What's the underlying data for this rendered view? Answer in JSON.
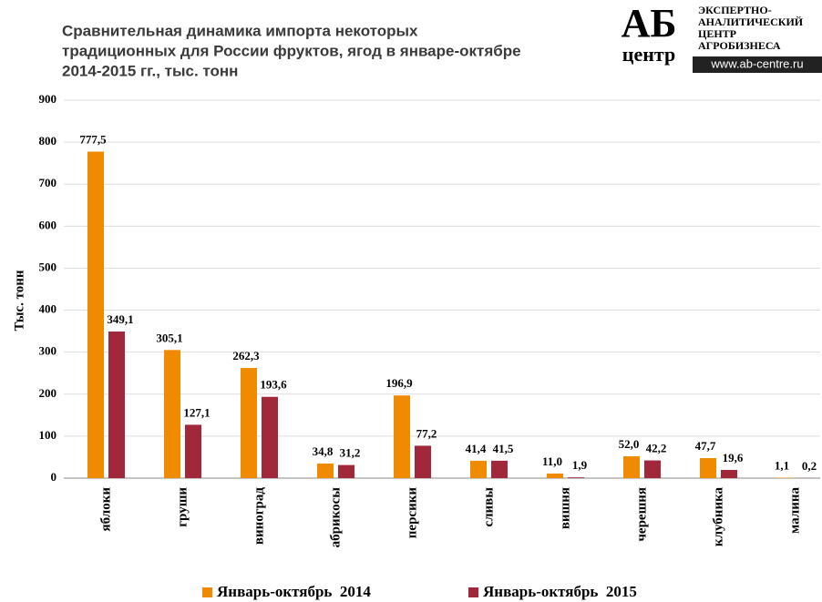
{
  "chart_data": {
    "type": "bar",
    "title": [
      "Сравнительная динамика импорта некоторых",
      "традиционных для России фруктов, ягод в январе-октябре",
      "2014-2015 гг., тыс. тонн"
    ],
    "y_label": "Тыс. тонн",
    "categories": [
      "яблоки",
      "груши",
      "виноград",
      "абрикосы",
      "персики",
      "сливы",
      "вишня",
      "черешня",
      "клубника",
      "малина"
    ],
    "series": [
      {
        "name": "Январь-октябрь  2014",
        "color": "#f08a00",
        "values": [
          777.5,
          305.1,
          262.3,
          34.8,
          196.9,
          41.4,
          11.0,
          52.0,
          47.7,
          1.1
        ],
        "value_labels": [
          "777,5",
          "305,1",
          "262,3",
          "34,8",
          "196,9",
          "41,4",
          "11,0",
          "52,0",
          "47,7",
          "1,1"
        ]
      },
      {
        "name": "Январь-октябрь  2015",
        "color": "#a0283a",
        "values": [
          349.1,
          127.1,
          193.6,
          31.2,
          77.2,
          41.5,
          1.9,
          42.2,
          19.6,
          0.2
        ],
        "value_labels": [
          "349,1",
          "127,1",
          "193,6",
          "31,2",
          "77,2",
          "41,5",
          "1,9",
          "42,2",
          "19,6",
          "0,2"
        ]
      }
    ],
    "ylim": [
      0,
      900
    ],
    "yticks": [
      0,
      100,
      200,
      300,
      400,
      500,
      600,
      700,
      800,
      900
    ],
    "grid": true,
    "legend": "bottom"
  },
  "logo": {
    "mark": "АБ",
    "mark_sub": "центр",
    "lines": [
      "ЭКСПЕРТНО-",
      "АНАЛИТИЧЕСКИЙ",
      "ЦЕНТР",
      "АГРОБИЗНЕСА"
    ],
    "url": "www.ab-centre.ru"
  }
}
